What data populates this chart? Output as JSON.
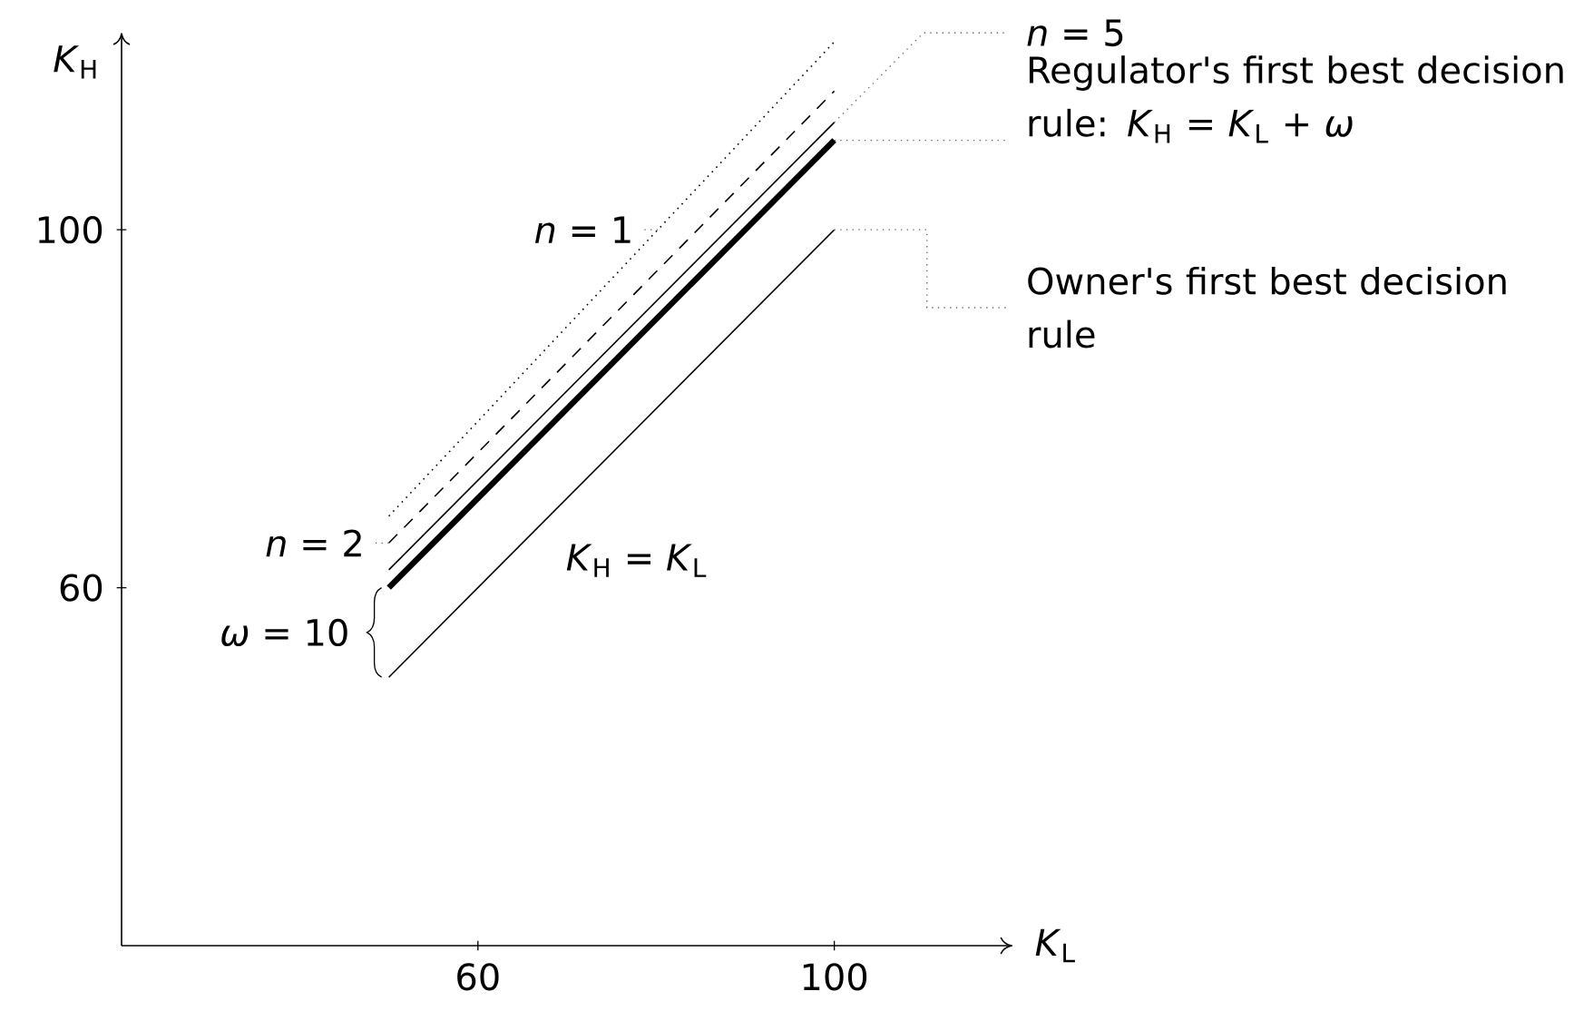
{
  "chart_data": {
    "type": "line",
    "x": [
      50,
      100
    ],
    "series": [
      {
        "name": "*n* = 1",
        "color": "#000000",
        "line_style": "dotted",
        "values": [
          68,
          121
        ]
      },
      {
        "name": "*n* = 2",
        "color": "#000000",
        "line_style": "dashed",
        "values": [
          65,
          115.5
        ]
      },
      {
        "name": "*n* = 5",
        "color": "#000000",
        "line_style": "solid",
        "values": [
          62,
          112
        ]
      },
      {
        "name": "Regulator's first best decision rule: *K*$_{H}$ = *K*$_{L}$ + *ω*",
        "color": "#000000",
        "line_style": "solid",
        "values": [
          60,
          110
        ]
      },
      {
        "name": "Owner's first best decision rule",
        "color": "#000000",
        "line_style": "solid",
        "values": [
          50,
          100
        ]
      }
    ],
    "xlabel": "*K*$_{L}$",
    "ylabel": "*K*$_{H}$",
    "annotations": [
      "*K*$_{H}$ = *K*$_{L}$",
      "*ω* = 10"
    ],
    "xlim": [
      20,
      120
    ],
    "ylim": [
      20,
      122
    ],
    "xticks": [
      60,
      100
    ],
    "yticks": [
      60,
      100
    ]
  }
}
